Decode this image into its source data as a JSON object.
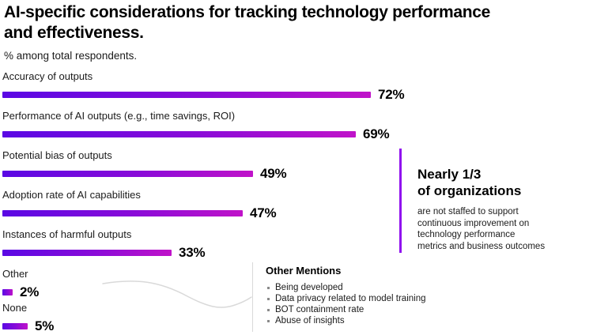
{
  "chart_data": {
    "type": "bar",
    "orientation": "horizontal",
    "title": "AI-specific considerations for tracking technology performance and effectiveness.",
    "subtitle": "% among total respondents.",
    "categories": [
      "Accuracy of outputs",
      "Performance of AI outputs (e.g., time savings, ROI)",
      "Potential bias of outputs",
      "Adoption rate of AI capabilities",
      "Instances of harmful outputs",
      "Other",
      "None"
    ],
    "values": [
      72,
      69,
      49,
      47,
      33,
      2,
      5
    ],
    "value_suffix": "%",
    "xlim": [
      0,
      100
    ],
    "grid": false,
    "legend": false,
    "bar_gradient": [
      "#5A08E4",
      "#8A0BD8",
      "#C013C9"
    ]
  },
  "callout": {
    "heading_line1": "Nearly 1/3",
    "heading_line2": "of organizations",
    "body": "are not staffed to support continuous improvement on technology performance metrics and business outcomes",
    "accent_color": "#9010EE"
  },
  "other_mentions": {
    "heading": "Other Mentions",
    "items": [
      "Being developed",
      "Data privacy related to model training",
      "BOT containment rate",
      "Abuse of insights"
    ]
  }
}
